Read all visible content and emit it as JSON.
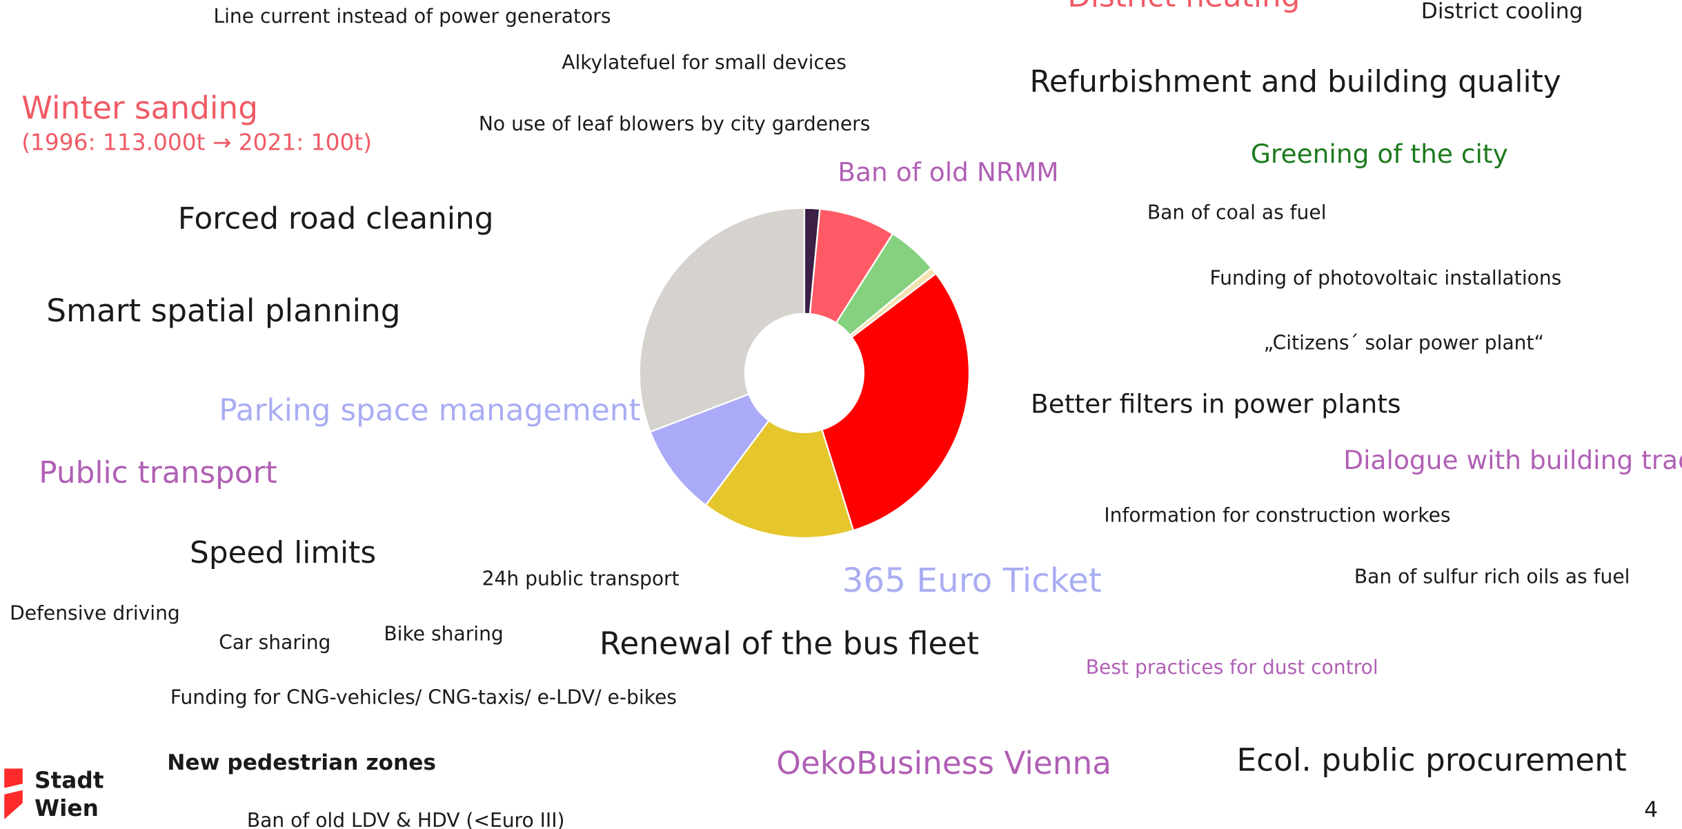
{
  "chart_data": {
    "type": "donut",
    "values": [
      1.5,
      7.5,
      5,
      0.7,
      30.5,
      15,
      9,
      30.8
    ],
    "colors": [
      "#3b1f46",
      "#ff5a65",
      "#86d17f",
      "#f2e2b0",
      "#ff0000",
      "#e5c62c",
      "#aaaaf8",
      "#d6d2cd"
    ]
  },
  "labels": [
    "Line current instead of power generators",
    "Alkylatefuel for small devices",
    "District heating",
    "District cooling",
    "Refurbishment and building quality",
    "Winter sanding",
    "(1996: 113.000t → 2021: 100t)",
    "No use of leaf blowers by city gardeners",
    "Greening of the city",
    "Ban of old NRMM",
    "Ban of coal as fuel",
    "Forced road cleaning",
    "Funding of photovoltaic installations",
    "Smart spatial planning",
    "„Citizens´ solar power plant“",
    "Better filters in power plants",
    "Parking space management",
    "Dialogue with building trade",
    "Public transport",
    "Information for construction workes",
    "Speed limits",
    "24h public transport",
    "365 Euro Ticket",
    "Ban of sulfur rich oils as fuel",
    "Defensive driving",
    "Car sharing",
    "Bike sharing",
    "Renewal of the bus fleet",
    "Best practices for dust control",
    "Funding for CNG-vehicles/ CNG-taxis/ e-LDV/ e-bikes",
    "New pedestrian zones",
    "OekoBusiness Vienna",
    "Ecol. public procurement",
    "Ban of old LDV & HDV (<Euro III)"
  ],
  "logo": [
    "Stadt",
    "Wien"
  ],
  "page_number": 4
}
